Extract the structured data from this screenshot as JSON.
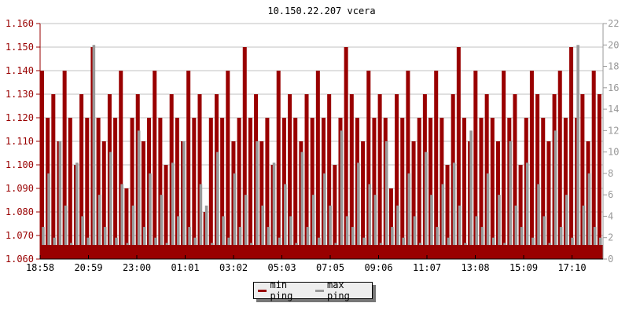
{
  "chart_data": {
    "type": "bar",
    "title": "10.150.22.207 vcera",
    "colors": {
      "min": "#990000",
      "max": "#999999",
      "grid": "#c0c0c0"
    },
    "x_tick_labels": [
      "18:58",
      "20:59",
      "23:00",
      "01:01",
      "03:02",
      "05:03",
      "07:05",
      "09:06",
      "11:07",
      "13:08",
      "15:09",
      "17:10"
    ],
    "y_left": {
      "ylim": [
        1.06,
        1.16
      ],
      "ticks": [
        "1.060",
        "1.070",
        "1.080",
        "1.090",
        "1.100",
        "1.110",
        "1.120",
        "1.130",
        "1.140",
        "1.150",
        "1.160"
      ]
    },
    "y_right": {
      "ylim": [
        0,
        22
      ],
      "ticks": [
        "0",
        "2",
        "4",
        "6",
        "8",
        "10",
        "12",
        "14",
        "16",
        "18",
        "20",
        "22"
      ]
    },
    "grid": true,
    "legend_placement": "bottom",
    "series": [
      {
        "name": "min ping",
        "axis": "left",
        "values": [
          1.14,
          1.12,
          1.13,
          1.11,
          1.14,
          1.12,
          1.1,
          1.13,
          1.12,
          1.15,
          1.12,
          1.11,
          1.13,
          1.12,
          1.14,
          1.09,
          1.12,
          1.13,
          1.11,
          1.12,
          1.14,
          1.12,
          1.1,
          1.13,
          1.12,
          1.11,
          1.14,
          1.12,
          1.13,
          1.08,
          1.12,
          1.13,
          1.12,
          1.14,
          1.11,
          1.12,
          1.15,
          1.12,
          1.13,
          1.11,
          1.12,
          1.1,
          1.14,
          1.12,
          1.13,
          1.12,
          1.11,
          1.13,
          1.12,
          1.14,
          1.12,
          1.13,
          1.1,
          1.12,
          1.15,
          1.13,
          1.12,
          1.11,
          1.14,
          1.12,
          1.13,
          1.12,
          1.09,
          1.13,
          1.12,
          1.14,
          1.11,
          1.12,
          1.13,
          1.12,
          1.14,
          1.12,
          1.1,
          1.13,
          1.15,
          1.12,
          1.11,
          1.14,
          1.12,
          1.13,
          1.12,
          1.11,
          1.14,
          1.12,
          1.13,
          1.1,
          1.12,
          1.14,
          1.13,
          1.12,
          1.11,
          1.13,
          1.14,
          1.12,
          1.15,
          1.12,
          1.13,
          1.11,
          1.14,
          1.13
        ]
      },
      {
        "name": "max ping",
        "axis": "right",
        "values": [
          3,
          8,
          2,
          11,
          5,
          1.5,
          9,
          4,
          2,
          20,
          6,
          3,
          10,
          2,
          7,
          1.5,
          5,
          12,
          3,
          8,
          2,
          6,
          1.5,
          9,
          4,
          11,
          3,
          2,
          7,
          5,
          1.5,
          10,
          4,
          2,
          8,
          3,
          6,
          1.5,
          11,
          5,
          3,
          9,
          2,
          7,
          4,
          1.5,
          10,
          3,
          6,
          2,
          8,
          5,
          1.5,
          12,
          4,
          3,
          9,
          2,
          7,
          6,
          1.5,
          11,
          3,
          5,
          2,
          8,
          4,
          1.5,
          10,
          6,
          3,
          7,
          2,
          9,
          5,
          1.5,
          12,
          4,
          3,
          8,
          2,
          6,
          1.5,
          11,
          5,
          3,
          9,
          2,
          7,
          4,
          1.5,
          12,
          3,
          6,
          2,
          20,
          5,
          8,
          3,
          2
        ]
      }
    ]
  }
}
